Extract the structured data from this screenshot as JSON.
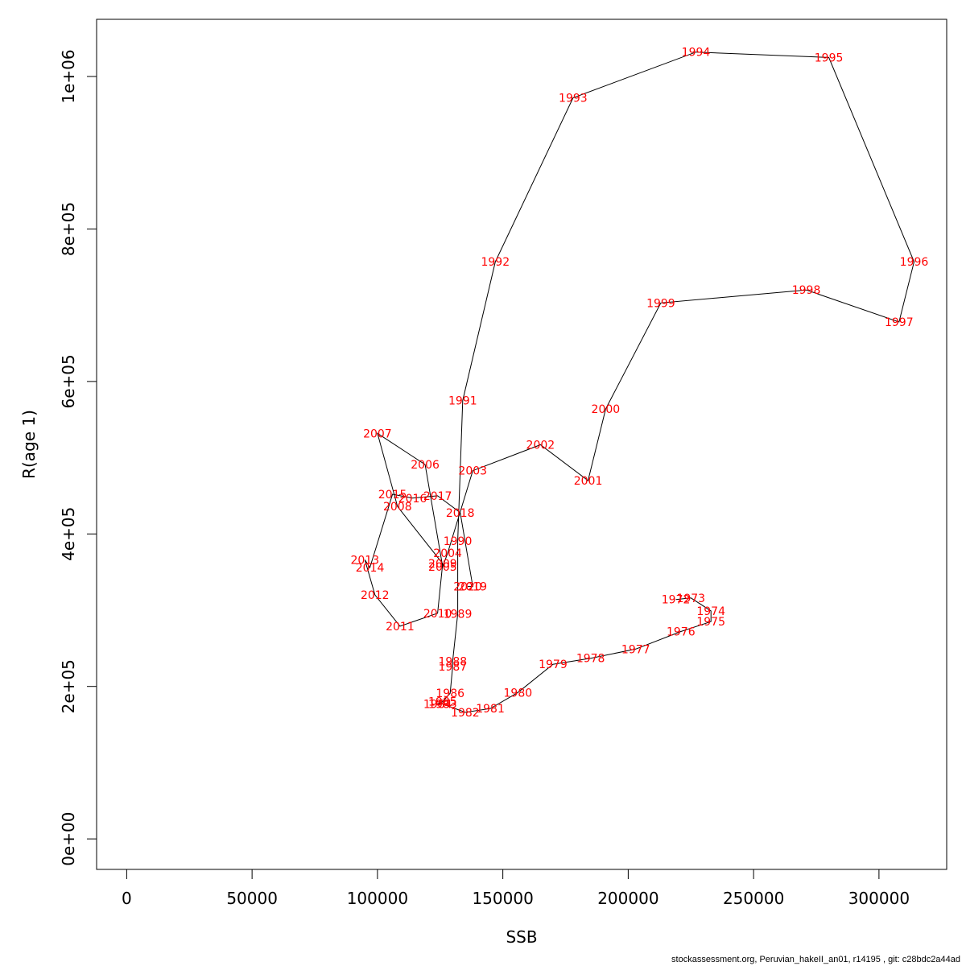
{
  "colors": {
    "labels": "#ff0000",
    "path": "#000000",
    "axes": "#000000"
  },
  "chart_data": {
    "type": "line",
    "xlabel": "SSB",
    "ylabel": "R(age 1)",
    "xlim": [
      -12000,
      327000
    ],
    "ylim": [
      -40000,
      1075000
    ],
    "xticks": [
      0,
      50000,
      100000,
      150000,
      200000,
      250000,
      300000
    ],
    "yticks": [
      0,
      200000,
      400000,
      600000,
      800000,
      1000000
    ],
    "ytick_labels": [
      "0e+00",
      "2e+05",
      "4e+05",
      "6e+05",
      "8e+05",
      "1e+06"
    ],
    "points": [
      {
        "year": "1972",
        "x": 219000,
        "y": 314000
      },
      {
        "year": "1973",
        "x": 225000,
        "y": 316000
      },
      {
        "year": "1974",
        "x": 233000,
        "y": 299000
      },
      {
        "year": "1975",
        "x": 233000,
        "y": 285000
      },
      {
        "year": "1976",
        "x": 221000,
        "y": 272000
      },
      {
        "year": "1977",
        "x": 203000,
        "y": 249000
      },
      {
        "year": "1978",
        "x": 185000,
        "y": 237000
      },
      {
        "year": "1979",
        "x": 170000,
        "y": 229000
      },
      {
        "year": "1980",
        "x": 156000,
        "y": 192000
      },
      {
        "year": "1981",
        "x": 145000,
        "y": 171000
      },
      {
        "year": "1982",
        "x": 135000,
        "y": 166000
      },
      {
        "year": "1983",
        "x": 126000,
        "y": 177000
      },
      {
        "year": "1984",
        "x": 124000,
        "y": 177000
      },
      {
        "year": "1985",
        "x": 126000,
        "y": 180000
      },
      {
        "year": "1986",
        "x": 129000,
        "y": 191000
      },
      {
        "year": "1987",
        "x": 130000,
        "y": 226000
      },
      {
        "year": "1988",
        "x": 130000,
        "y": 233000
      },
      {
        "year": "1989",
        "x": 132000,
        "y": 295000
      },
      {
        "year": "1990",
        "x": 132000,
        "y": 391000
      },
      {
        "year": "1991",
        "x": 134000,
        "y": 575000
      },
      {
        "year": "1992",
        "x": 147000,
        "y": 757000
      },
      {
        "year": "1993",
        "x": 178000,
        "y": 972000
      },
      {
        "year": "1994",
        "x": 227000,
        "y": 1032000
      },
      {
        "year": "1995",
        "x": 280000,
        "y": 1025000
      },
      {
        "year": "1996",
        "x": 314000,
        "y": 757000
      },
      {
        "year": "1997",
        "x": 308000,
        "y": 678000
      },
      {
        "year": "1998",
        "x": 271000,
        "y": 720000
      },
      {
        "year": "1999",
        "x": 213000,
        "y": 703000
      },
      {
        "year": "2000",
        "x": 191000,
        "y": 564000
      },
      {
        "year": "2001",
        "x": 184000,
        "y": 470000
      },
      {
        "year": "2002",
        "x": 165000,
        "y": 517000
      },
      {
        "year": "2003",
        "x": 138000,
        "y": 483000
      },
      {
        "year": "2004",
        "x": 128000,
        "y": 375000
      },
      {
        "year": "2005",
        "x": 126000,
        "y": 357000
      },
      {
        "year": "2006",
        "x": 119000,
        "y": 491000
      },
      {
        "year": "2007",
        "x": 100000,
        "y": 532000
      },
      {
        "year": "2008",
        "x": 108000,
        "y": 436000
      },
      {
        "year": "2009",
        "x": 126000,
        "y": 361000
      },
      {
        "year": "2010",
        "x": 124000,
        "y": 296000
      },
      {
        "year": "2011",
        "x": 109000,
        "y": 279000
      },
      {
        "year": "2012",
        "x": 99000,
        "y": 320000
      },
      {
        "year": "2013",
        "x": 95000,
        "y": 366000
      },
      {
        "year": "2014",
        "x": 97000,
        "y": 356000
      },
      {
        "year": "2015",
        "x": 106000,
        "y": 452000
      },
      {
        "year": "2016",
        "x": 114000,
        "y": 447000
      },
      {
        "year": "2017",
        "x": 124000,
        "y": 450000
      },
      {
        "year": "2018",
        "x": 133000,
        "y": 428000
      },
      {
        "year": "2019",
        "x": 138000,
        "y": 331000
      },
      {
        "year": "2020",
        "x": 136000,
        "y": 331000
      }
    ]
  },
  "footer": {
    "credit": "stockassessment.org, Peruvian_hakeII_an01, r14195 , git: c28bdc2a44ad"
  }
}
